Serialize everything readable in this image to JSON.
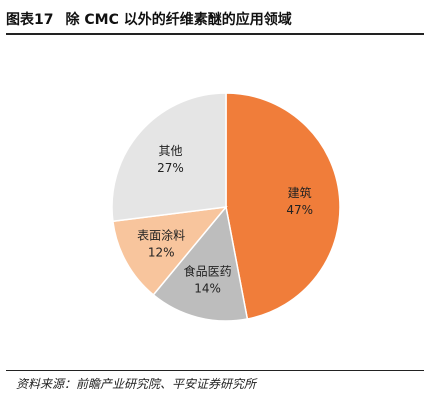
{
  "header": {
    "figure_no": "图表17",
    "title": "除 CMC 以外的纤维素醚的应用领域"
  },
  "source": {
    "text": "资料来源：前瞻产业研究院、平安证券研究所"
  },
  "chart_data": {
    "type": "pie",
    "title": "除 CMC 以外的纤维素醚的应用领域",
    "slices": [
      {
        "label": "建筑",
        "value": 47,
        "value_label": "47%",
        "color": "#F07D3A"
      },
      {
        "label": "食品医药",
        "value": 14,
        "value_label": "14%",
        "color": "#BDBDBD"
      },
      {
        "label": "表面涂料",
        "value": 12,
        "value_label": "12%",
        "color": "#F8C59D"
      },
      {
        "label": "其他",
        "value": 27,
        "value_label": "27%",
        "color": "#E5E5E5"
      }
    ]
  }
}
